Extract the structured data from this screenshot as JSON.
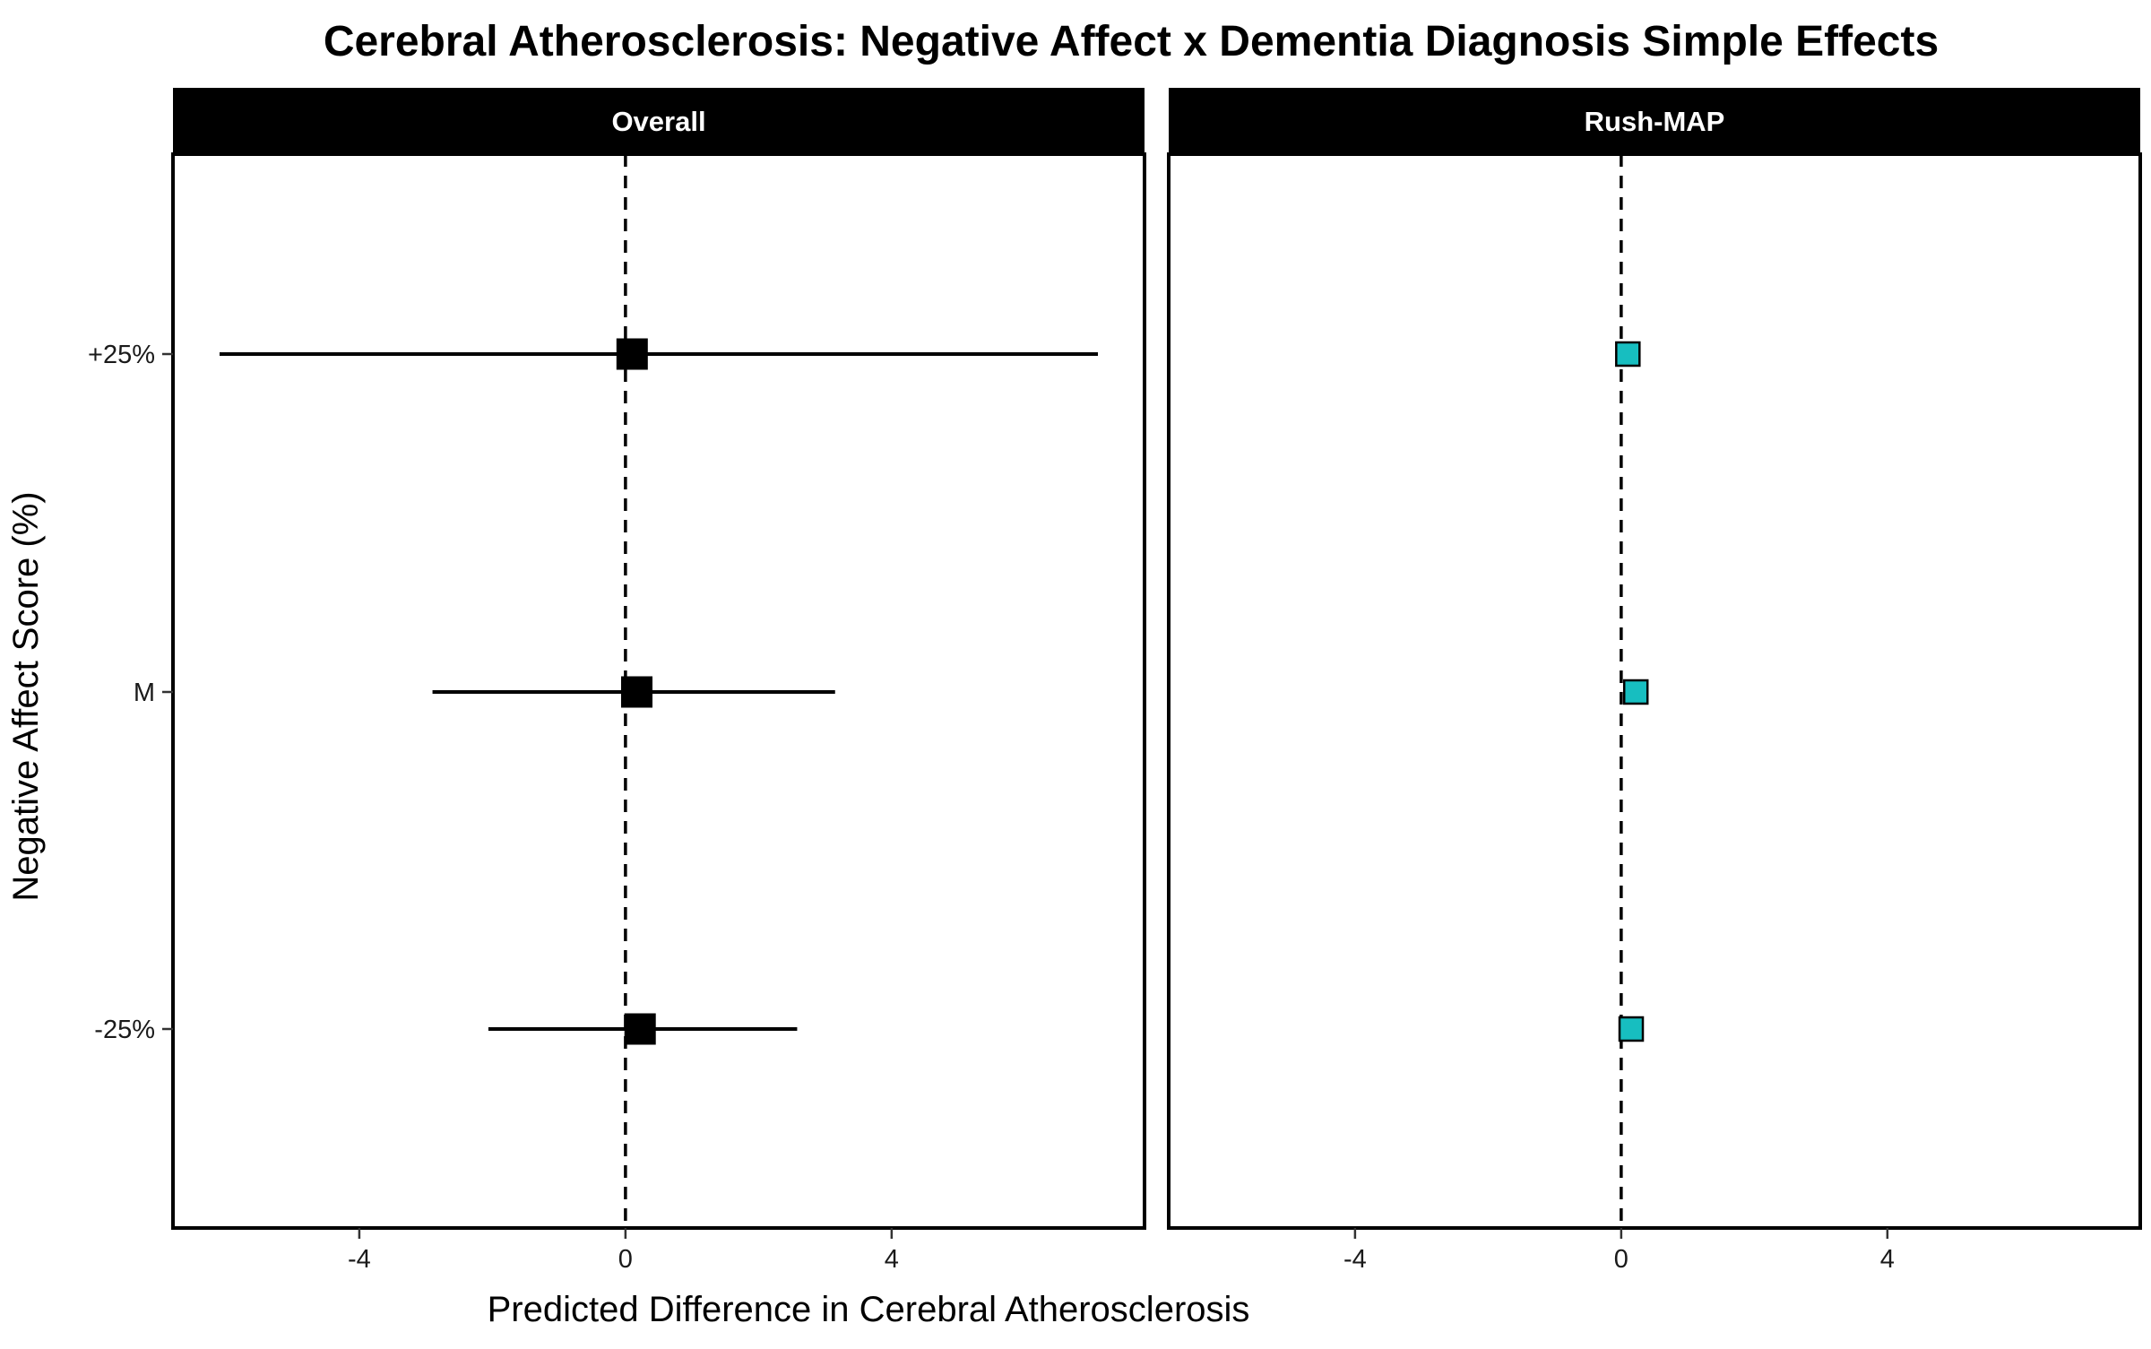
{
  "chart_data": {
    "type": "scatter",
    "title": "Cerebral Atherosclerosis: Negative Affect x Dementia Diagnosis Simple Effects",
    "xlabel": "Predicted Difference in Cerebral Atherosclerosis",
    "ylabel": "Negative Affect Score (%)",
    "categories": [
      "+25%",
      "M",
      "-25%"
    ],
    "x_ticks": [
      "-4",
      "0",
      "4"
    ],
    "xlim": [
      -6.8,
      7.8
    ],
    "reference_line": 0,
    "grid": false,
    "legend": "none",
    "panels": [
      {
        "name": "Overall",
        "color": "#000000",
        "marker": "square",
        "points": [
          {
            "category": "+25%",
            "estimate": 0.1,
            "ci": [
              -6.1,
              7.1
            ]
          },
          {
            "category": "M",
            "estimate": 0.17,
            "ci": [
              -2.9,
              3.15
            ]
          },
          {
            "category": "-25%",
            "estimate": 0.22,
            "ci": [
              -2.06,
              2.58
            ]
          }
        ]
      },
      {
        "name": "Rush-MAP",
        "color": "#17bec0",
        "marker": "square",
        "points": [
          {
            "category": "+25%",
            "estimate": 0.1,
            "ci": [
              0.05,
              0.17
            ]
          },
          {
            "category": "M",
            "estimate": 0.22,
            "ci": [
              0.15,
              0.3
            ]
          },
          {
            "category": "-25%",
            "estimate": 0.15,
            "ci": [
              0.1,
              0.2
            ]
          }
        ]
      }
    ]
  }
}
